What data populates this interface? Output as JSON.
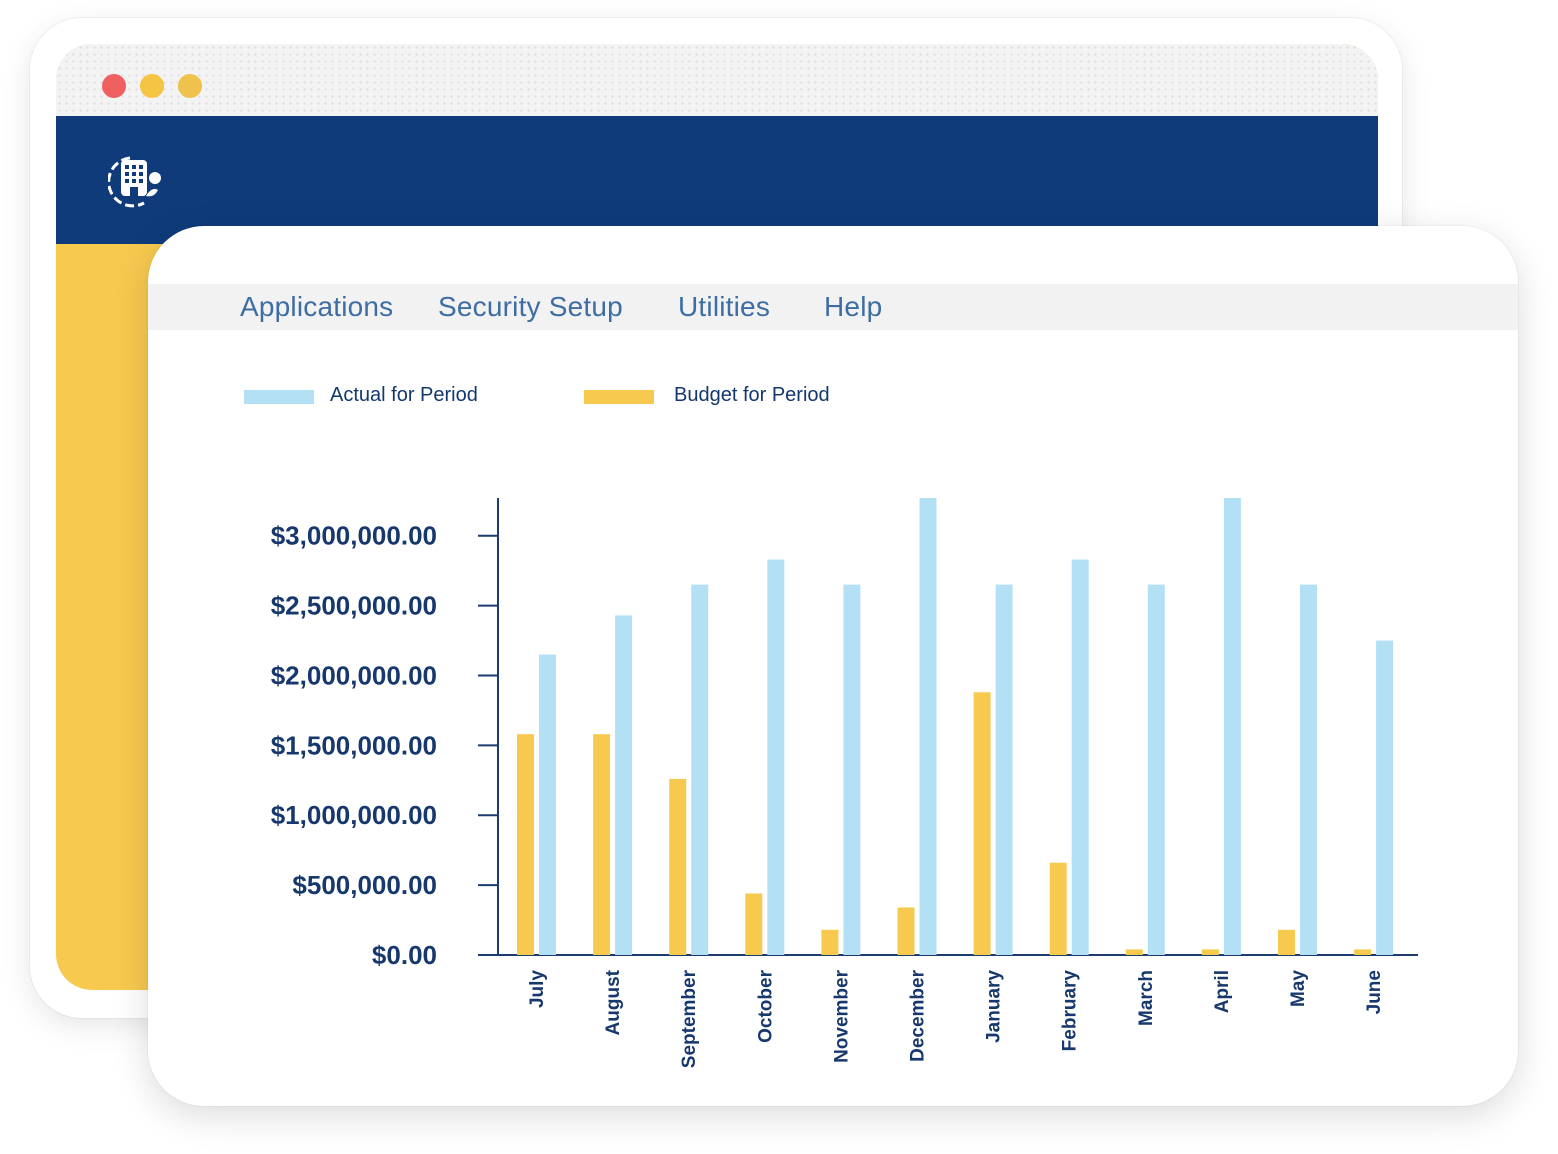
{
  "window_controls": [
    {
      "name": "close",
      "color": "#f06060"
    },
    {
      "name": "minimize",
      "color": "#f6c443"
    },
    {
      "name": "maximize",
      "color": "#eec24c"
    }
  ],
  "header": {
    "logo_icon": "building-icon",
    "color": "#0f3b7b",
    "accent": "#f7c94f"
  },
  "menu": {
    "items": [
      "Applications",
      "Security Setup",
      "Utilities",
      "Help"
    ]
  },
  "legend": {
    "actual_label": "Actual for Period",
    "budget_label": "Budget for Period",
    "actual_color": "#b3e0f5",
    "budget_color": "#f7c94f"
  },
  "chart_data": {
    "type": "bar",
    "title": "",
    "xlabel": "",
    "ylabel": "",
    "categories": [
      "July",
      "August",
      "September",
      "October",
      "November",
      "December",
      "January",
      "February",
      "March",
      "April",
      "May",
      "June"
    ],
    "series": [
      {
        "name": "Budget for Period",
        "color": "#f7c94f",
        "values": [
          1580000,
          1580000,
          1260000,
          440000,
          180000,
          340000,
          1880000,
          660000,
          40000,
          40000,
          180000,
          40000
        ]
      },
      {
        "name": "Actual for Period",
        "color": "#b3e0f5",
        "values": [
          2150000,
          2430000,
          2650000,
          2830000,
          2650000,
          3270000,
          2650000,
          2830000,
          2650000,
          3270000,
          2650000,
          2250000
        ]
      }
    ],
    "y_ticks": [
      {
        "value": 0,
        "label": "$0.00"
      },
      {
        "value": 500000,
        "label": "$500,000.00"
      },
      {
        "value": 1000000,
        "label": "$1,000,000.00"
      },
      {
        "value": 1500000,
        "label": "$1,500,000.00"
      },
      {
        "value": 2000000,
        "label": "$2,000,000.00"
      },
      {
        "value": 2500000,
        "label": "$2,500,000.00"
      },
      {
        "value": 3000000,
        "label": "$3,000,000.00"
      }
    ],
    "ylim": [
      0,
      3270000
    ],
    "grid": false,
    "legend_position": "top-left",
    "axis_color": "#1c3b6f"
  }
}
